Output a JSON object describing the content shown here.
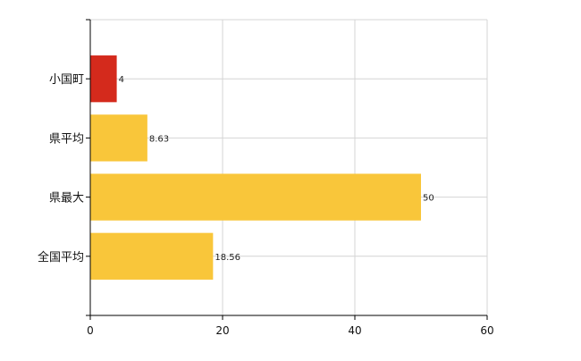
{
  "chart_data": {
    "type": "bar",
    "orientation": "horizontal",
    "categories": [
      "小国町",
      "県平均",
      "県最大",
      "全国平均"
    ],
    "values": [
      4,
      8.63,
      50,
      18.56
    ],
    "value_labels": [
      "4",
      "8.63",
      "50",
      "18.56"
    ],
    "x_ticks": [
      0,
      20,
      40,
      60
    ],
    "xlim": [
      0,
      60
    ],
    "grid": true,
    "colors": {
      "highlight": "#d42a1c",
      "default": "#f9c63a",
      "grid": "#d4d4d4",
      "axis": "#000000"
    },
    "highlight_index": 0
  }
}
